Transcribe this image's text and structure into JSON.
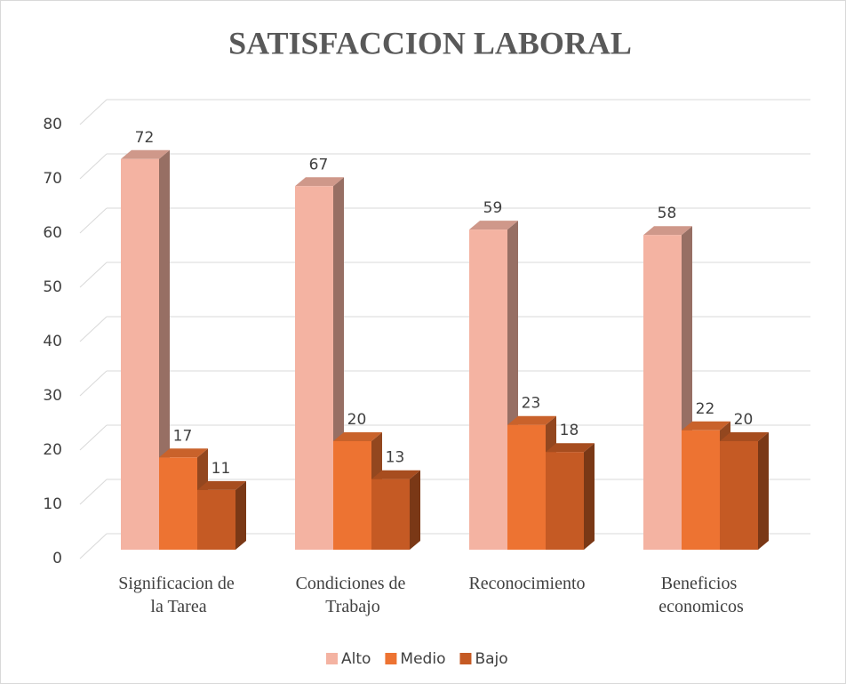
{
  "chart_data": {
    "type": "bar3d",
    "title": "SATISFACCION LABORAL",
    "categories": [
      "Significacion de la Tarea",
      "Condiciones de Trabajo",
      "Reconocimiento",
      "Beneficios economicos"
    ],
    "series": [
      {
        "name": "Alto",
        "color": "#f4b3a2",
        "values": [
          72,
          67,
          59,
          58
        ]
      },
      {
        "name": "Medio",
        "color": "#ed7332",
        "values": [
          17,
          20,
          23,
          22
        ]
      },
      {
        "name": "Bajo",
        "color": "#c55a24",
        "values": [
          11,
          13,
          18,
          20
        ]
      }
    ],
    "ylim": [
      0,
      80
    ],
    "yticks": [
      0,
      10,
      20,
      30,
      40,
      50,
      60,
      70,
      80
    ],
    "grid": true,
    "legend": "bottom"
  }
}
